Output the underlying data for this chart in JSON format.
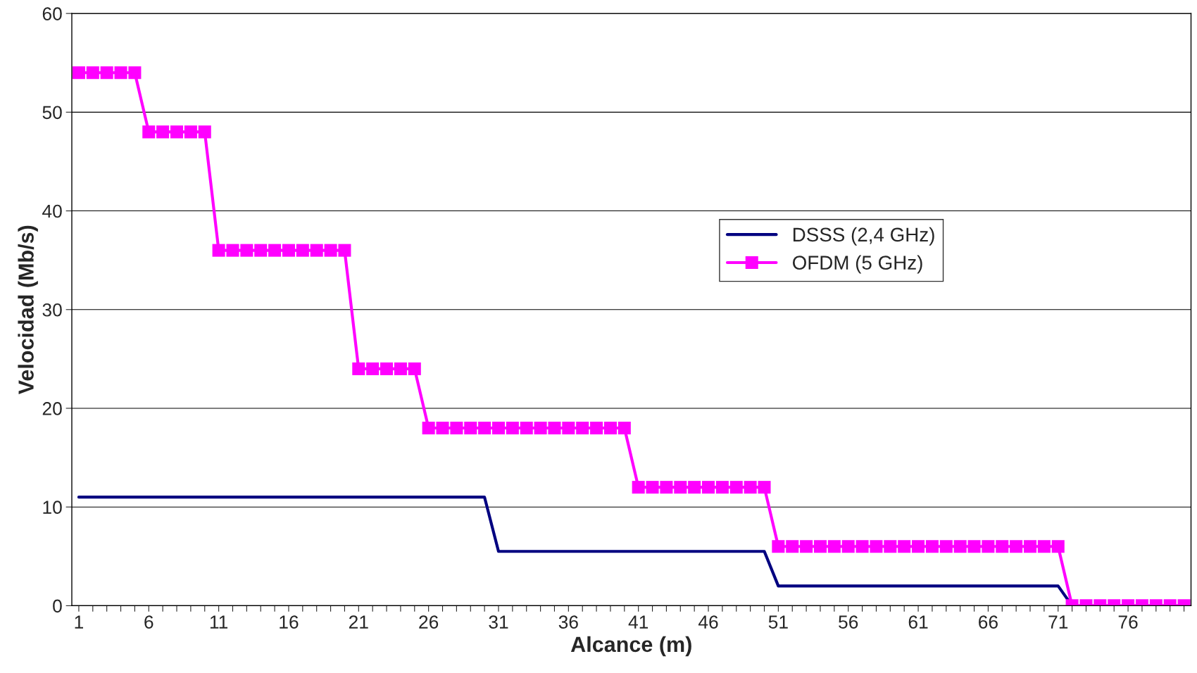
{
  "chart_data": {
    "type": "line",
    "xlabel": "Alcance (m)",
    "ylabel": "Velocidad (Mb/s)",
    "categories": [
      "1",
      null,
      null,
      null,
      null,
      "6",
      null,
      null,
      null,
      null,
      "11",
      null,
      null,
      null,
      null,
      "16",
      null,
      null,
      null,
      null,
      "21",
      null,
      null,
      null,
      null,
      "26",
      null,
      null,
      null,
      null,
      "31",
      null,
      null,
      null,
      null,
      "36",
      null,
      null,
      null,
      null,
      "41",
      null,
      null,
      null,
      null,
      "46",
      null,
      null,
      null,
      null,
      "51",
      null,
      null,
      null,
      null,
      "56",
      null,
      null,
      null,
      null,
      "61",
      null,
      null,
      null,
      null,
      "66",
      null,
      null,
      null,
      null,
      "71",
      null,
      null,
      null,
      null,
      "76",
      null,
      null,
      null,
      null
    ],
    "series": [
      {
        "name": "DSSS (2,4 GHz)",
        "color": "#000080",
        "marker": "none",
        "values": [
          11,
          11,
          11,
          11,
          11,
          11,
          11,
          11,
          11,
          11,
          11,
          11,
          11,
          11,
          11,
          11,
          11,
          11,
          11,
          11,
          11,
          11,
          11,
          11,
          11,
          11,
          11,
          11,
          11,
          11,
          5.5,
          5.5,
          5.5,
          5.5,
          5.5,
          5.5,
          5.5,
          5.5,
          5.5,
          5.5,
          5.5,
          5.5,
          5.5,
          5.5,
          5.5,
          5.5,
          5.5,
          5.5,
          5.5,
          5.5,
          2,
          2,
          2,
          2,
          2,
          2,
          2,
          2,
          2,
          2,
          2,
          2,
          2,
          2,
          2,
          2,
          2,
          2,
          2,
          2,
          2,
          0,
          null,
          null,
          null,
          null,
          null,
          null,
          null,
          null
        ]
      },
      {
        "name": "OFDM (5 GHz)",
        "color": "#ff00ff",
        "marker": "square",
        "values": [
          54,
          54,
          54,
          54,
          54,
          48,
          48,
          48,
          48,
          48,
          36,
          36,
          36,
          36,
          36,
          36,
          36,
          36,
          36,
          36,
          24,
          24,
          24,
          24,
          24,
          18,
          18,
          18,
          18,
          18,
          18,
          18,
          18,
          18,
          18,
          18,
          18,
          18,
          18,
          18,
          12,
          12,
          12,
          12,
          12,
          12,
          12,
          12,
          12,
          12,
          6,
          6,
          6,
          6,
          6,
          6,
          6,
          6,
          6,
          6,
          6,
          6,
          6,
          6,
          6,
          6,
          6,
          6,
          6,
          6,
          6,
          0,
          0,
          0,
          0,
          0,
          0,
          0,
          0,
          0
        ]
      }
    ],
    "ylim": [
      0,
      60
    ],
    "yticks": [
      0,
      10,
      20,
      30,
      40,
      50,
      60
    ],
    "grid": "y",
    "legend": "right"
  }
}
